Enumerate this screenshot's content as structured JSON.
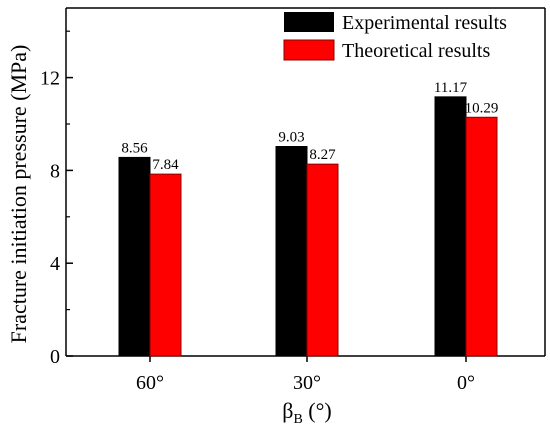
{
  "chart_data": {
    "type": "bar",
    "categories": [
      "60°",
      "30°",
      "0°"
    ],
    "series": [
      {
        "name": "Experimental results",
        "values": [
          8.56,
          9.03,
          11.17
        ],
        "value_labels": [
          "8.56",
          "9.03",
          "11.17"
        ],
        "color": "#000000"
      },
      {
        "name": "Theoretical results",
        "values": [
          7.84,
          8.27,
          10.29
        ],
        "value_labels": [
          "7.84",
          "8.27",
          "10.29"
        ],
        "color": "#ff0000"
      }
    ],
    "ylabel": "Fracture initiation pressure (MPa)",
    "xlabel_main": "β",
    "xlabel_sub": "B",
    "xlabel_unit": " (°)",
    "ylim": [
      0,
      15
    ],
    "yticks": [
      0,
      4,
      8,
      12
    ],
    "ytick_labels": [
      "0",
      "4",
      "8",
      "12"
    ],
    "grid": false,
    "legend_position": "top-right"
  }
}
